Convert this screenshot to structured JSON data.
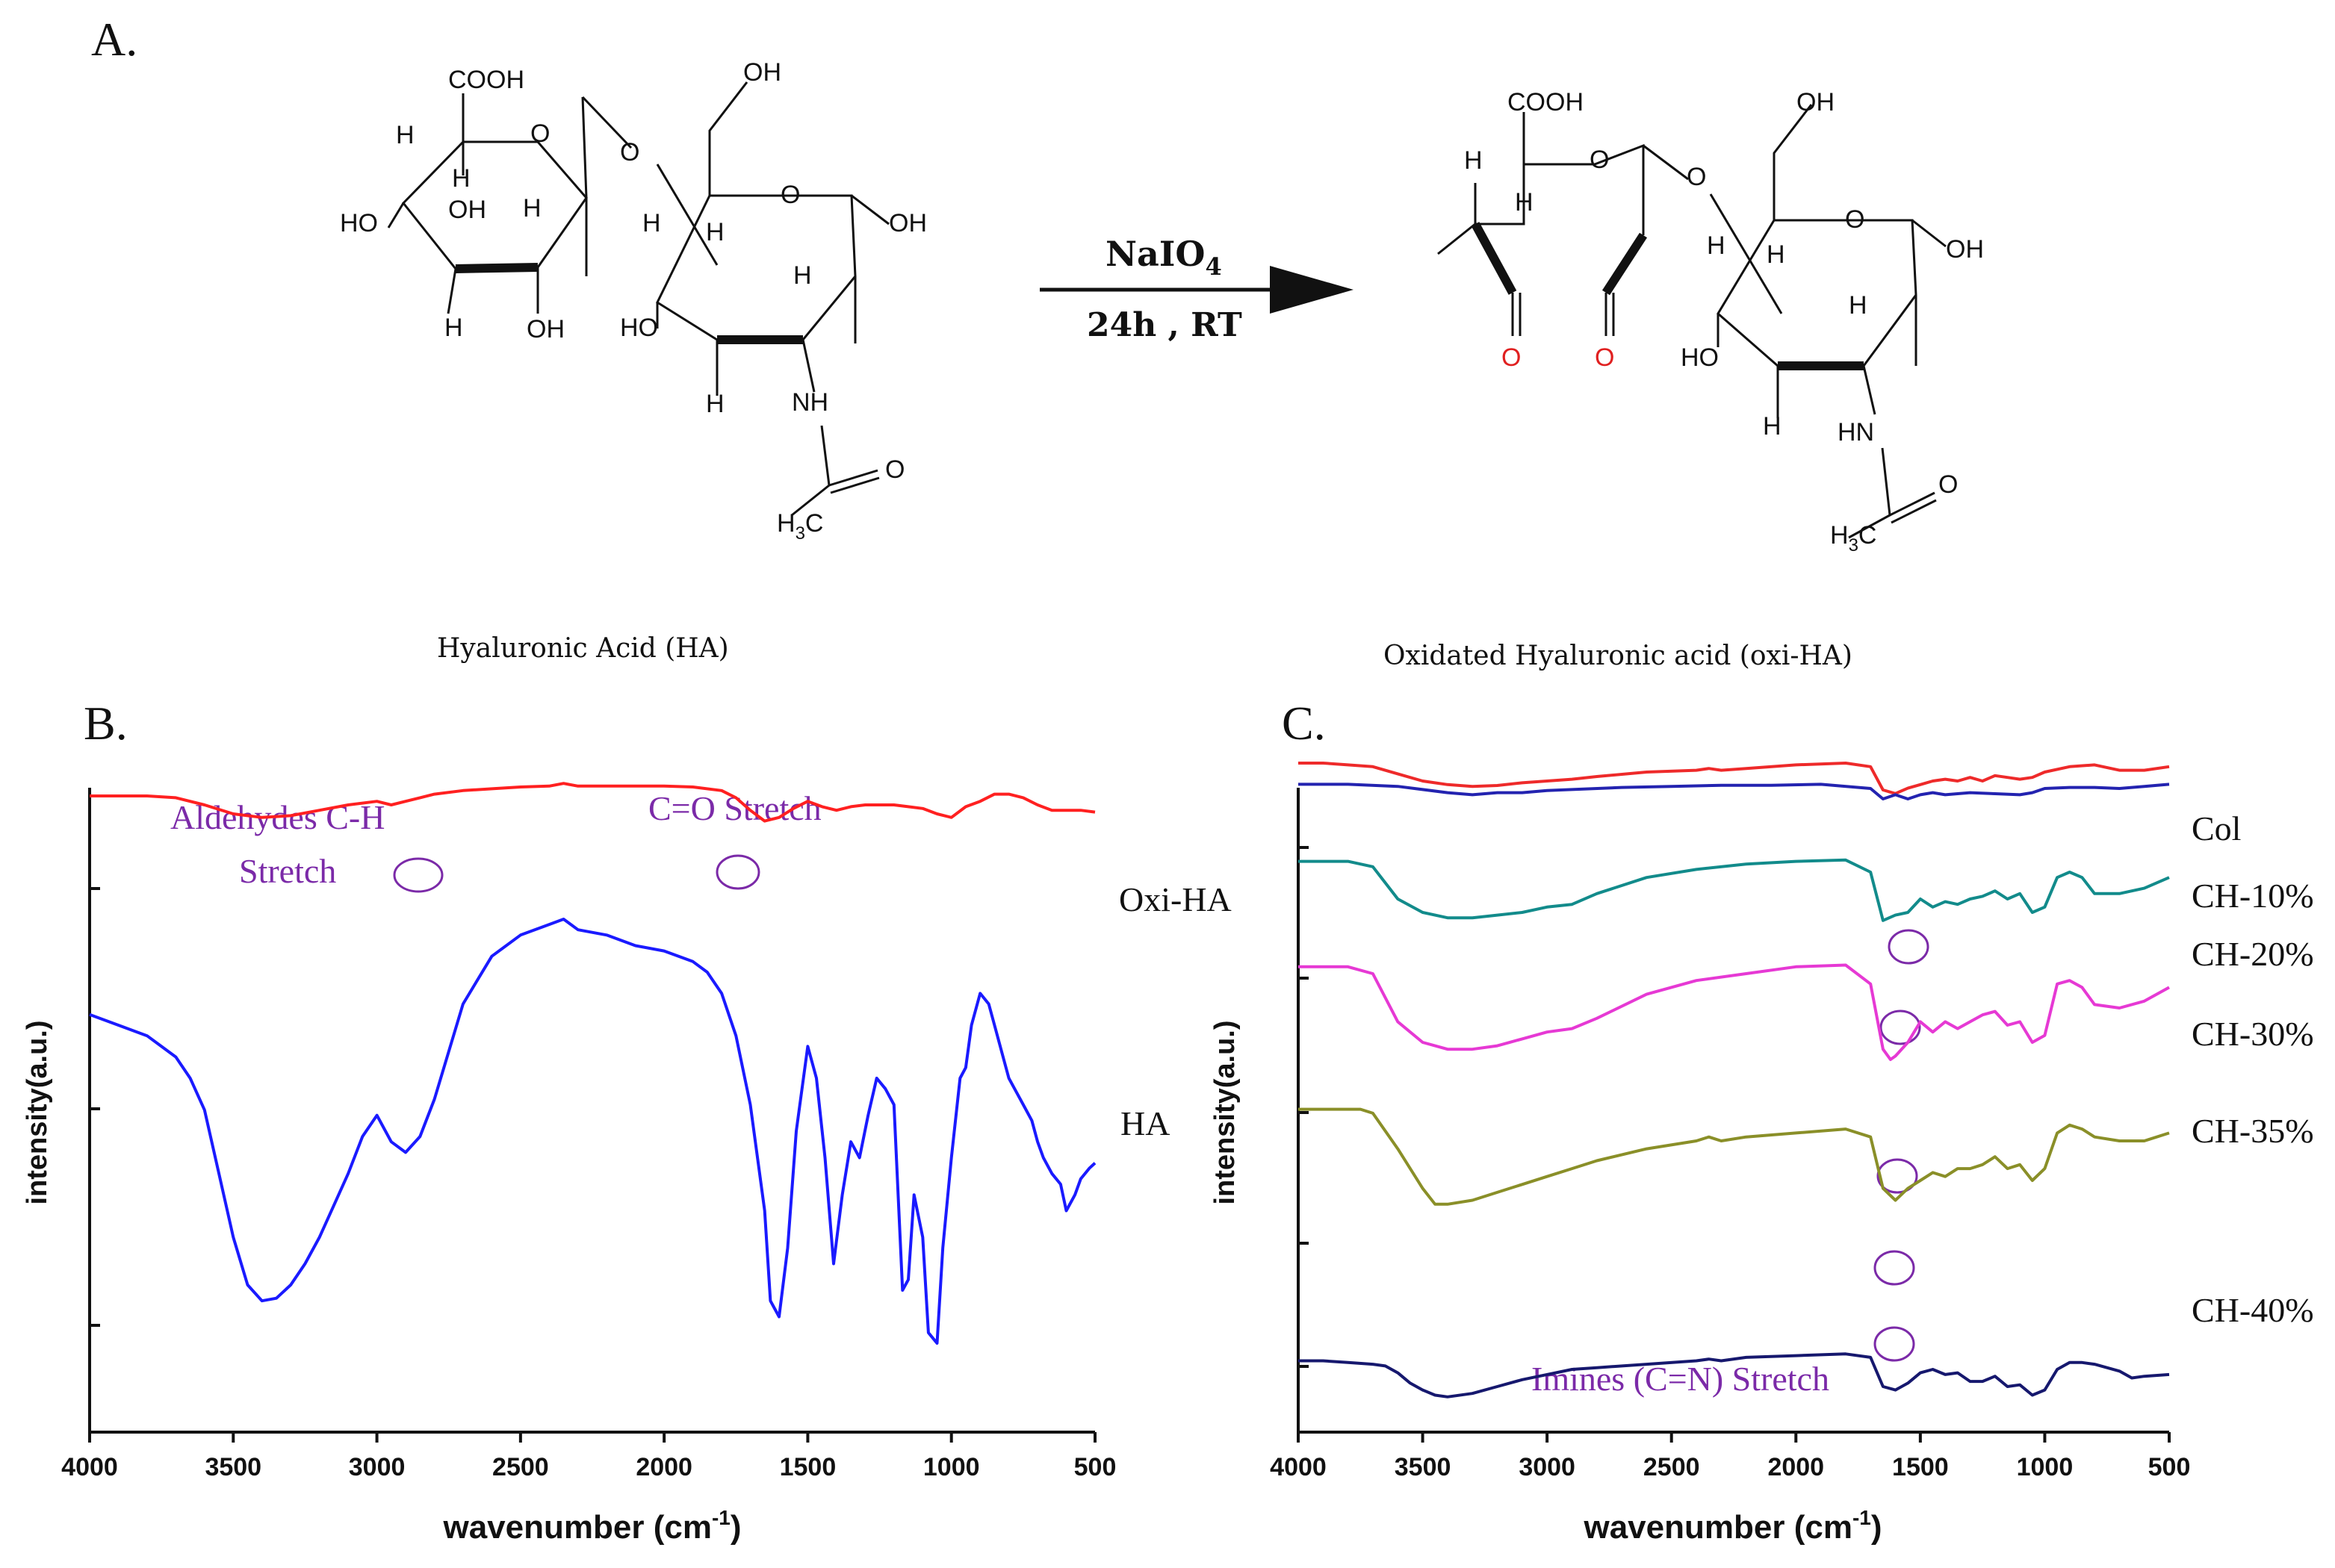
{
  "panels": {
    "A": {
      "letter": "A."
    },
    "B": {
      "letter": "B."
    },
    "C": {
      "letter": "C."
    }
  },
  "reaction": {
    "reagent": "NaIO",
    "reagent_subscript": "4",
    "conditions": "24h , RT",
    "reactant_name": "Hyaluronic Acid (HA)",
    "product_name": "Oxidated Hyaluronic acid (oxi-HA)",
    "atoms": {
      "cooh": "COOH",
      "oh": "OH",
      "ho": "HO",
      "h": "H",
      "o": "O",
      "nh": "NH",
      "hn": "HN",
      "h3c": "H",
      "h3c_sub": "3",
      "h3c_c": "C"
    },
    "colors": {
      "aldehyde_o": "#e02020",
      "bond": "#111111"
    }
  },
  "chart_data": [
    {
      "id": "B",
      "type": "line",
      "title": "",
      "xlabel": "wavenumber (cm",
      "xlabel_sup": "-1",
      "xlabel_close": ")",
      "ylabel": "intensity(a.u.)",
      "xlim": [
        4000,
        500
      ],
      "ylim": [
        0,
        100
      ],
      "xticks": [
        4000,
        3500,
        3000,
        2500,
        2000,
        1500,
        1000,
        500
      ],
      "series": [
        {
          "name": "Oxi-HA",
          "color": "#ff2020",
          "x": [
            4000,
            3900,
            3800,
            3700,
            3600,
            3500,
            3400,
            3300,
            3200,
            3100,
            3000,
            2950,
            2900,
            2850,
            2800,
            2700,
            2600,
            2500,
            2400,
            2350,
            2300,
            2200,
            2100,
            2000,
            1900,
            1800,
            1750,
            1700,
            1650,
            1600,
            1550,
            1500,
            1450,
            1400,
            1350,
            1300,
            1250,
            1200,
            1150,
            1100,
            1050,
            1000,
            950,
            900,
            850,
            800,
            750,
            700,
            650,
            600,
            550,
            500
          ],
          "values": [
            85,
            85,
            85,
            84,
            80,
            75,
            73,
            74,
            77,
            80,
            82,
            80,
            82,
            84,
            86,
            88,
            89,
            90,
            90.5,
            92,
            90.5,
            90.5,
            90.5,
            90.5,
            90,
            88,
            84,
            77,
            71,
            73,
            78,
            82,
            79,
            77,
            79,
            80,
            80,
            80,
            79,
            78,
            75,
            73,
            79,
            82,
            86,
            86,
            84,
            80,
            77,
            77,
            77,
            76
          ]
        },
        {
          "name": "HA",
          "color": "#1a1aff",
          "x": [
            4000,
            3900,
            3800,
            3700,
            3650,
            3600,
            3550,
            3500,
            3450,
            3400,
            3350,
            3300,
            3250,
            3200,
            3150,
            3100,
            3050,
            3000,
            2950,
            2900,
            2850,
            2800,
            2700,
            2600,
            2500,
            2400,
            2350,
            2300,
            2200,
            2100,
            2000,
            1900,
            1850,
            1800,
            1750,
            1700,
            1650,
            1630,
            1600,
            1570,
            1540,
            1500,
            1470,
            1440,
            1410,
            1380,
            1350,
            1320,
            1290,
            1260,
            1230,
            1200,
            1170,
            1150,
            1130,
            1100,
            1080,
            1050,
            1030,
            1000,
            970,
            950,
            930,
            900,
            870,
            850,
            820,
            800,
            780,
            750,
            720,
            700,
            680,
            650,
            620,
            600,
            570,
            550,
            520,
            500
          ],
          "values": [
            72,
            70,
            68,
            64,
            60,
            54,
            42,
            30,
            21,
            18,
            18.5,
            21,
            25,
            30,
            36,
            42,
            49,
            53,
            48,
            46,
            49,
            56,
            74,
            83,
            87,
            89,
            90,
            88,
            87,
            85,
            84,
            82,
            80,
            76,
            68,
            55,
            35,
            18,
            15,
            28,
            50,
            66,
            60,
            45,
            25,
            38,
            48,
            45,
            53,
            60,
            58,
            55,
            20,
            22,
            38,
            30,
            12,
            10,
            28,
            45,
            60,
            62,
            70,
            76,
            74,
            70,
            64,
            60,
            58,
            55,
            52,
            48,
            45,
            42,
            40,
            35,
            38,
            41,
            43,
            44
          ]
        }
      ],
      "series_labels": [
        "Oxi-HA",
        "HA"
      ],
      "annotations": [
        {
          "text": "Aldehydes C-H",
          "text2": "Stretch",
          "color": "#7b2aa8",
          "x": 2850
        },
        {
          "text": "C=O Stretch",
          "color": "#7b2aa8",
          "x": 1720
        }
      ]
    },
    {
      "id": "C",
      "type": "line",
      "title": "",
      "xlabel": "wavenumber (cm",
      "xlabel_sup": "-1",
      "xlabel_close": ")",
      "ylabel": "intensity(a.u.)",
      "xlim": [
        4000,
        500
      ],
      "ylim": [
        0,
        100
      ],
      "xticks": [
        4000,
        3500,
        3000,
        2500,
        2000,
        1500,
        1000,
        500
      ],
      "series": [
        {
          "name": "Col",
          "color": "#ee2a2a",
          "x": [
            4000,
            3900,
            3800,
            3700,
            3600,
            3500,
            3400,
            3300,
            3200,
            3100,
            3000,
            2900,
            2800,
            2600,
            2400,
            2350,
            2300,
            2200,
            2000,
            1800,
            1700,
            1650,
            1600,
            1550,
            1500,
            1450,
            1400,
            1350,
            1300,
            1250,
            1200,
            1150,
            1100,
            1050,
            1000,
            900,
            800,
            700,
            600,
            500
          ],
          "values": [
            95,
            95,
            94,
            93,
            89,
            85,
            83,
            82,
            82.5,
            84,
            85,
            86,
            87.5,
            90,
            91,
            92,
            91,
            92,
            94,
            95,
            93,
            80,
            78,
            81,
            83,
            85,
            86,
            85,
            87,
            85,
            88,
            87,
            86,
            87,
            90,
            93,
            94,
            91,
            91,
            93
          ]
        },
        {
          "name": "CH-10%",
          "color": "#2323b0",
          "x": [
            4000,
            3800,
            3600,
            3400,
            3300,
            3200,
            3100,
            3000,
            2900,
            2700,
            2500,
            2300,
            2100,
            1900,
            1700,
            1650,
            1600,
            1550,
            1500,
            1450,
            1400,
            1300,
            1200,
            1100,
            1050,
            1000,
            900,
            800,
            700,
            600,
            500
          ],
          "values": [
            82,
            82,
            81,
            78,
            77,
            78,
            78,
            79,
            79.5,
            80.5,
            81,
            81.5,
            81.5,
            82,
            80,
            75,
            77,
            75,
            77,
            78,
            77,
            78,
            77.5,
            77,
            78,
            80,
            80.5,
            80.5,
            80,
            81,
            82
          ]
        },
        {
          "name": "CH-20%",
          "color": "#128b8b",
          "x": [
            4000,
            3900,
            3800,
            3700,
            3650,
            3600,
            3500,
            3400,
            3300,
            3200,
            3100,
            3000,
            2900,
            2800,
            2600,
            2400,
            2200,
            2000,
            1800,
            1700,
            1650,
            1600,
            1550,
            1500,
            1450,
            1400,
            1350,
            1300,
            1250,
            1200,
            1150,
            1100,
            1050,
            1000,
            950,
            900,
            850,
            800,
            700,
            600,
            500
          ],
          "values": [
            74,
            74,
            74,
            72,
            66,
            60,
            55,
            53,
            53,
            54,
            55,
            57,
            58,
            62,
            68,
            71,
            73,
            74,
            74.5,
            70,
            52,
            54,
            55,
            60,
            57,
            59,
            58,
            60,
            61,
            63,
            60,
            62,
            55,
            57,
            68,
            70,
            68,
            62,
            62,
            64,
            68
          ]
        },
        {
          "name": "CH-30%",
          "color": "#e639d4",
          "x": [
            4000,
            3900,
            3800,
            3700,
            3650,
            3600,
            3500,
            3400,
            3300,
            3200,
            3100,
            3000,
            2900,
            2800,
            2600,
            2400,
            2200,
            2000,
            1800,
            1700,
            1650,
            1620,
            1600,
            1550,
            1500,
            1450,
            1400,
            1350,
            1300,
            1250,
            1200,
            1150,
            1100,
            1050,
            1000,
            950,
            900,
            850,
            800,
            700,
            600,
            500
          ],
          "values": [
            62,
            62,
            62,
            60,
            53,
            46,
            40,
            38,
            38,
            39,
            41,
            43,
            44,
            47,
            54,
            58,
            60,
            62,
            62.5,
            57,
            38,
            35,
            36,
            40,
            46,
            43,
            46,
            44,
            46,
            48,
            49,
            45,
            46,
            40,
            42,
            57,
            58,
            56,
            51,
            50,
            52,
            56
          ]
        },
        {
          "name": "CH-35%",
          "color": "#8a8f28",
          "x": [
            4000,
            3900,
            3800,
            3750,
            3700,
            3600,
            3500,
            3450,
            3400,
            3300,
            3200,
            3100,
            3000,
            2900,
            2800,
            2600,
            2400,
            2350,
            2300,
            2200,
            2000,
            1800,
            1700,
            1650,
            1600,
            1550,
            1500,
            1450,
            1400,
            1350,
            1300,
            1250,
            1200,
            1150,
            1100,
            1050,
            1000,
            950,
            900,
            850,
            800,
            700,
            600,
            500
          ],
          "values": [
            48,
            48,
            48,
            48,
            47,
            38,
            28,
            24,
            24,
            25,
            27,
            29,
            31,
            33,
            35,
            38,
            40,
            41,
            40,
            41,
            42,
            43,
            41,
            28,
            25,
            28,
            30,
            32,
            31,
            33,
            33,
            34,
            36,
            33,
            34,
            30,
            33,
            42,
            44,
            43,
            41,
            40,
            40,
            42
          ]
        },
        {
          "name": "CH-40%",
          "color": "#16186e",
          "x": [
            4000,
            3900,
            3800,
            3700,
            3650,
            3600,
            3550,
            3500,
            3450,
            3400,
            3300,
            3200,
            3100,
            3000,
            2950,
            2900,
            2800,
            2600,
            2400,
            2350,
            2300,
            2200,
            2000,
            1800,
            1700,
            1650,
            1600,
            1550,
            1500,
            1450,
            1400,
            1350,
            1300,
            1250,
            1200,
            1150,
            1100,
            1050,
            1000,
            950,
            900,
            850,
            800,
            700,
            650,
            600,
            500
          ],
          "values": [
            25,
            25,
            24,
            23,
            22,
            18,
            12,
            8,
            5,
            4,
            6,
            10,
            14,
            17,
            18.5,
            20,
            21,
            23,
            25,
            26,
            25,
            27,
            28,
            29,
            27,
            10,
            8,
            12,
            18,
            20,
            17,
            18,
            13,
            13,
            16,
            10,
            11,
            5,
            8,
            20,
            24,
            24,
            23,
            19,
            15,
            16,
            17
          ]
        }
      ],
      "series_labels": [
        "Col",
        "CH-10%",
        "CH-20%",
        "CH-30%",
        "CH-35%",
        "CH-40%"
      ],
      "annotations": [
        {
          "text": "Imines (C=N) Stretch",
          "color": "#7b2aa8",
          "x": 1600
        }
      ]
    }
  ]
}
